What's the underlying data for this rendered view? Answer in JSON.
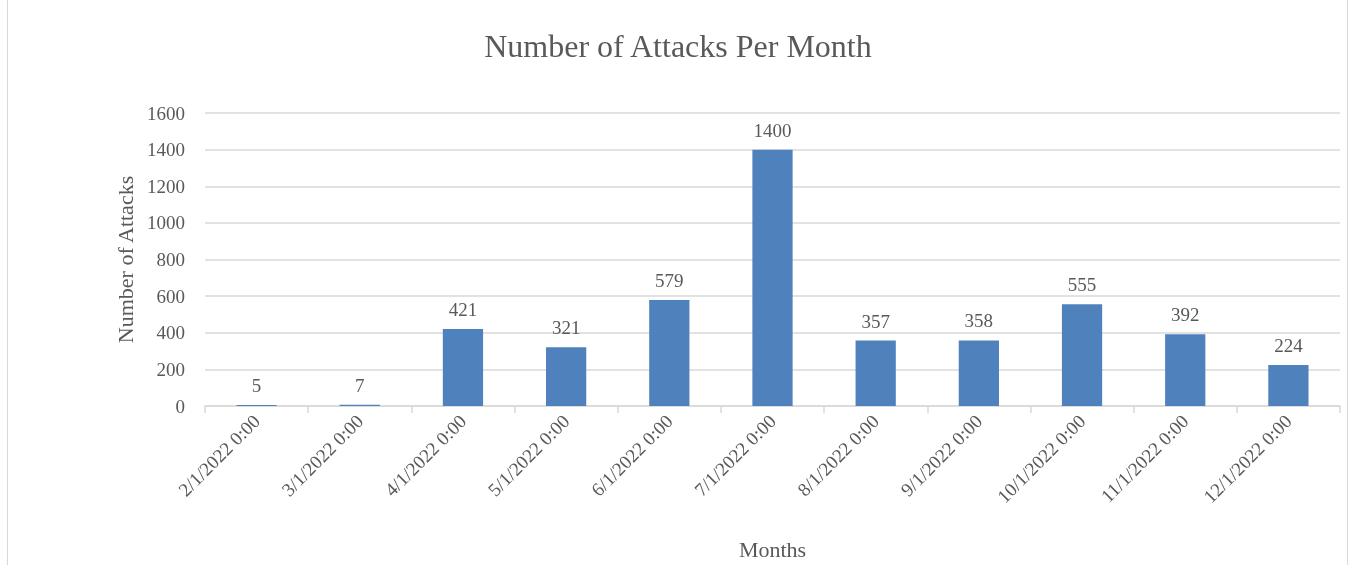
{
  "chart_data": {
    "type": "bar",
    "title": "Number of Attacks Per Month",
    "xlabel": "Months",
    "ylabel": "Number of Attacks",
    "categories": [
      "2/1/2022 0:00",
      "3/1/2022 0:00",
      "4/1/2022 0:00",
      "5/1/2022 0:00",
      "6/1/2022 0:00",
      "7/1/2022 0:00",
      "8/1/2022 0:00",
      "9/1/2022 0:00",
      "10/1/2022 0:00",
      "11/1/2022 0:00",
      "12/1/2022 0:00"
    ],
    "values": [
      5,
      7,
      421,
      321,
      579,
      1400,
      357,
      358,
      555,
      392,
      224
    ],
    "color": "#4f81bd",
    "ylim": [
      0,
      1600
    ],
    "yticks": [
      0,
      200,
      400,
      600,
      800,
      1000,
      1200,
      1400,
      1600
    ],
    "grid": "y",
    "data_labels": true
  }
}
